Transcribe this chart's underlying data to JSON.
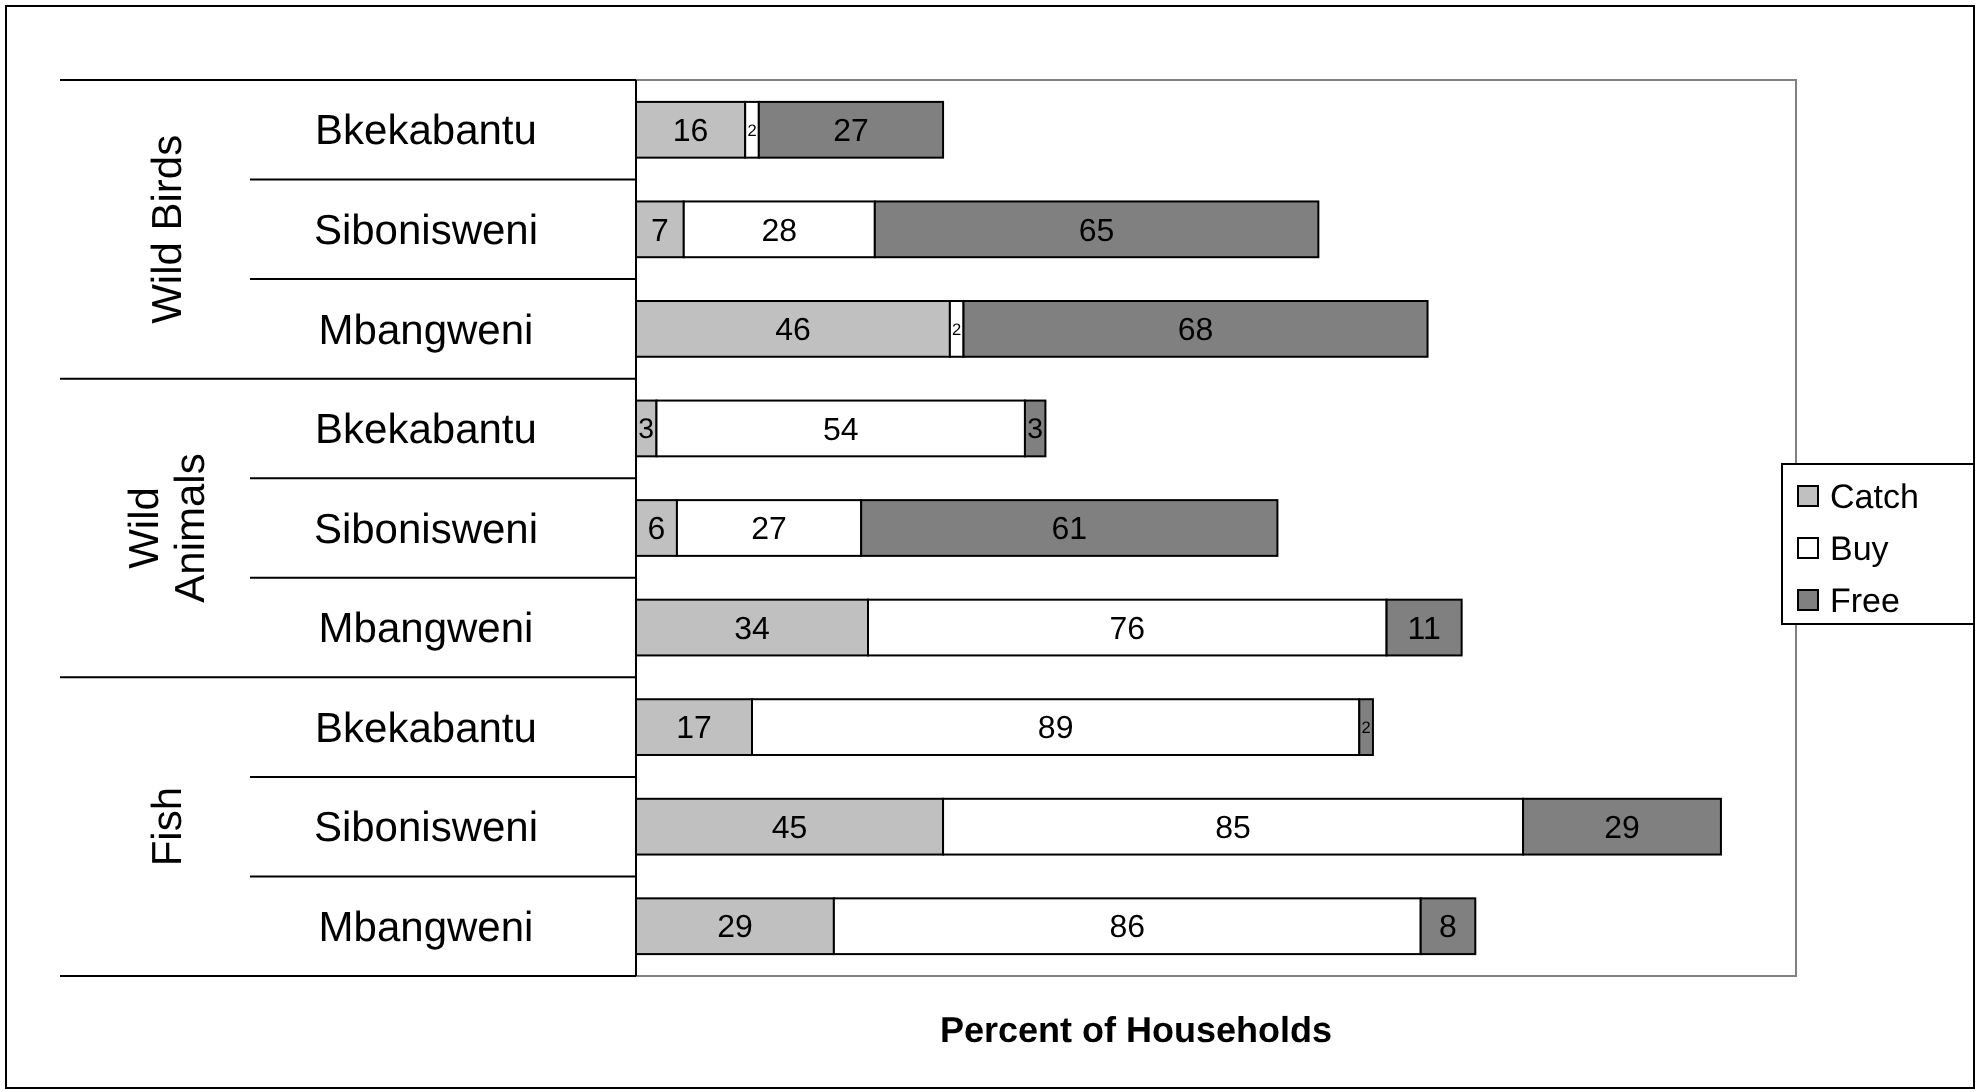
{
  "chart_data": {
    "type": "bar",
    "orientation": "horizontal",
    "stacked": true,
    "xlabel": "Percent of Households",
    "categories": [
      "Bkekabantu",
      "Sibonisweni",
      "Mbangweni",
      "Bkekabantu",
      "Sibonisweni",
      "Mbangweni",
      "Bkekabantu",
      "Sibonisweni",
      "Mbangweni"
    ],
    "annotations": [
      "Wild Birds",
      "Wild Animals",
      "Fish"
    ],
    "series": [
      {
        "name": "Catch",
        "color": "#c0c0c0",
        "values": [
          16,
          7,
          46,
          3,
          6,
          34,
          17,
          45,
          29
        ]
      },
      {
        "name": "Buy",
        "color": "#ffffff",
        "values": [
          2,
          28,
          2,
          54,
          27,
          76,
          89,
          85,
          86
        ]
      },
      {
        "name": "Free",
        "color": "#808080",
        "values": [
          27,
          65,
          68,
          3,
          61,
          11,
          2,
          29,
          8
        ]
      }
    ],
    "xlim": [
      0,
      170
    ],
    "data_labels": true,
    "legend": "right",
    "tick_labels": "y"
  }
}
